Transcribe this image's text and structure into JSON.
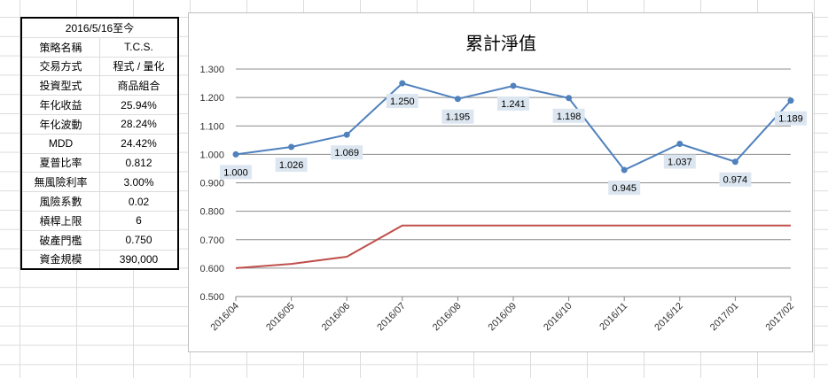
{
  "info_table": {
    "header": "2016/5/16至今",
    "rows": [
      {
        "key": "策略名稱",
        "value": "T.C.S."
      },
      {
        "key": "交易方式",
        "value": "程式 / 量化"
      },
      {
        "key": "投資型式",
        "value": "商品組合"
      },
      {
        "key": "年化收益",
        "value": "25.94%"
      },
      {
        "key": "年化波動",
        "value": "28.24%"
      },
      {
        "key": "MDD",
        "value": "24.42%"
      },
      {
        "key": "夏普比率",
        "value": "0.812"
      },
      {
        "key": "無風險利率",
        "value": "3.00%"
      },
      {
        "key": "風險系數",
        "value": "0.02"
      },
      {
        "key": "槓桿上限",
        "value": "6"
      },
      {
        "key": "破產門檻",
        "value": "0.750"
      },
      {
        "key": "資金規模",
        "value": "390,000"
      }
    ]
  },
  "chart_data": {
    "type": "line",
    "title": "累計淨值",
    "categories": [
      "2016/04",
      "2016/05",
      "2016/06",
      "2016/07",
      "2016/08",
      "2016/09",
      "2016/10",
      "2016/11",
      "2016/12",
      "2017/01",
      "2017/02"
    ],
    "ylim": [
      0.5,
      1.3
    ],
    "yticks": [
      "0.500",
      "0.600",
      "0.700",
      "0.800",
      "0.900",
      "1.000",
      "1.100",
      "1.200",
      "1.300"
    ],
    "grid": true,
    "series": [
      {
        "color": "#4f81bd",
        "markers": true,
        "values": [
          1.0,
          1.026,
          1.069,
          1.25,
          1.195,
          1.241,
          1.198,
          0.945,
          1.037,
          0.974,
          1.189
        ],
        "labels": [
          "1.000",
          "1.026",
          "1.069",
          "1.250",
          "1.195",
          "1.241",
          "1.198",
          "0.945",
          "1.037",
          "0.974",
          "1.189"
        ]
      },
      {
        "color": "#c0504d",
        "markers": false,
        "values": [
          0.6,
          0.615,
          0.64,
          0.75,
          0.75,
          0.75,
          0.75,
          0.75,
          0.75,
          0.75,
          0.75
        ]
      }
    ]
  }
}
